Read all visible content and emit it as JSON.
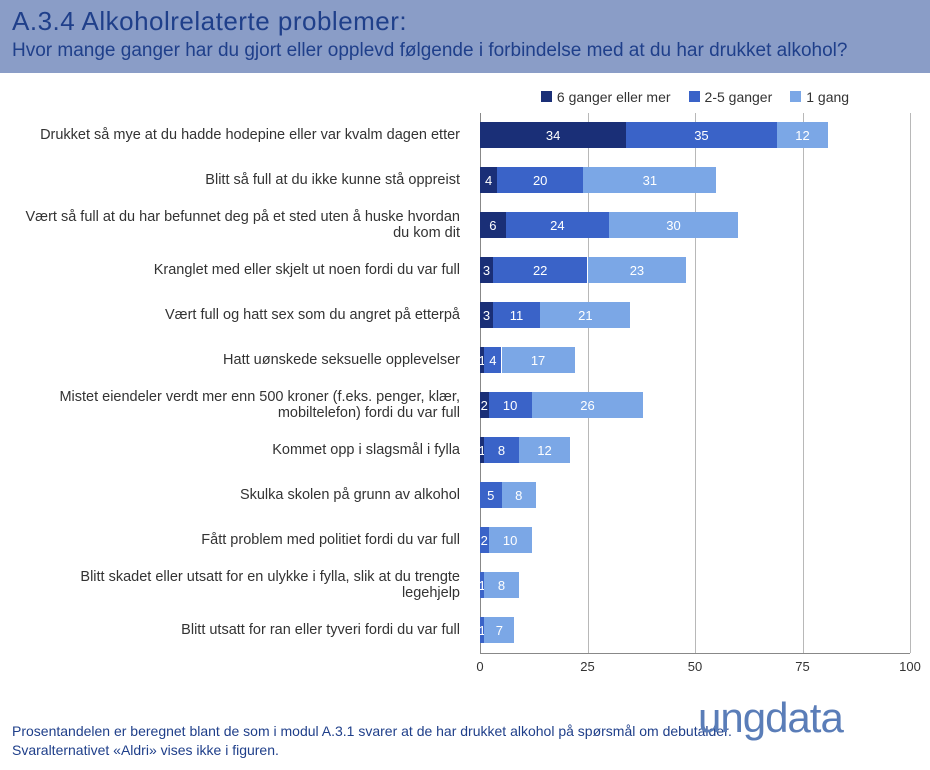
{
  "header": {
    "title": "A.3.4 Alkoholrelaterte problemer:",
    "subtitle": "Hvor mange ganger har du gjort eller opplevd følgende i forbindelse med at du har drukket alkohol?"
  },
  "chart": {
    "type": "stacked-horizontal-bar",
    "xlim": [
      0,
      100
    ],
    "xtick_step": 25,
    "xticks": [
      0,
      25,
      50,
      75,
      100
    ],
    "background_color": "#ffffff",
    "grid_color": "#b8b8b8",
    "axis_color": "#888888",
    "label_fontsize": 14.5,
    "value_font_color": "#ffffff",
    "series": [
      {
        "key": "s6",
        "label": "6 ganger eller mer",
        "color": "#1a2f77"
      },
      {
        "key": "s25",
        "label": "2-5 ganger",
        "color": "#3a63c8"
      },
      {
        "key": "s1",
        "label": "1 gang",
        "color": "#7ba7e6"
      }
    ],
    "rows": [
      {
        "label": "Drukket så mye at du hadde hodepine eller var kvalm dagen etter",
        "s6": 34,
        "s25": 35,
        "s1": 12
      },
      {
        "label": "Blitt så full at du ikke kunne stå oppreist",
        "s6": 4,
        "s25": 20,
        "s1": 31
      },
      {
        "label": "Vært så full at du har befunnet deg på et sted uten å huske hvordan du kom dit",
        "s6": 6,
        "s25": 24,
        "s1": 30
      },
      {
        "label": "Kranglet med eller skjelt ut noen fordi du var full",
        "s6": 3,
        "s25": 22,
        "s1": 23
      },
      {
        "label": "Vært full og hatt sex som du angret på etterpå",
        "s6": 3,
        "s25": 11,
        "s1": 21
      },
      {
        "label": "Hatt uønskede seksuelle opplevelser",
        "s6": 1,
        "s25": 4,
        "s1": 17
      },
      {
        "label": "Mistet eiendeler verdt mer enn 500 kroner  (f.eks. penger, klær, mobiltelefon) fordi du var full",
        "s6": 2,
        "s25": 10,
        "s1": 26
      },
      {
        "label": "Kommet opp i slagsmål i fylla",
        "s6": 1,
        "s25": 8,
        "s1": 12
      },
      {
        "label": "Skulka skolen på grunn av alkohol",
        "s6": 0,
        "s25": 5,
        "s1": 8
      },
      {
        "label": "Fått problem med politiet fordi du var full",
        "s6": 0,
        "s25": 2,
        "s1": 10
      },
      {
        "label": "Blitt skadet eller utsatt for en ulykke i fylla, slik at du trengte legehjelp",
        "s6": 0,
        "s25": 1,
        "s1": 8
      },
      {
        "label": "Blitt utsatt for ran eller tyveri fordi du var full",
        "s6": 0,
        "s25": 1,
        "s1": 7
      }
    ]
  },
  "footer": {
    "note1": "Prosentandelen er beregnet blant de som i modul A.3.1 svarer at de har drukket alkohol på spørsmål om debutalder.",
    "note2": "Svaralternativet «Aldri» vises ikke i figuren.",
    "logo_text": "ungdata"
  },
  "header_style": {
    "bg": "#8a9dc7",
    "title_color": "#1f3f8a",
    "title_fontsize": 26,
    "sub_fontsize": 19
  }
}
